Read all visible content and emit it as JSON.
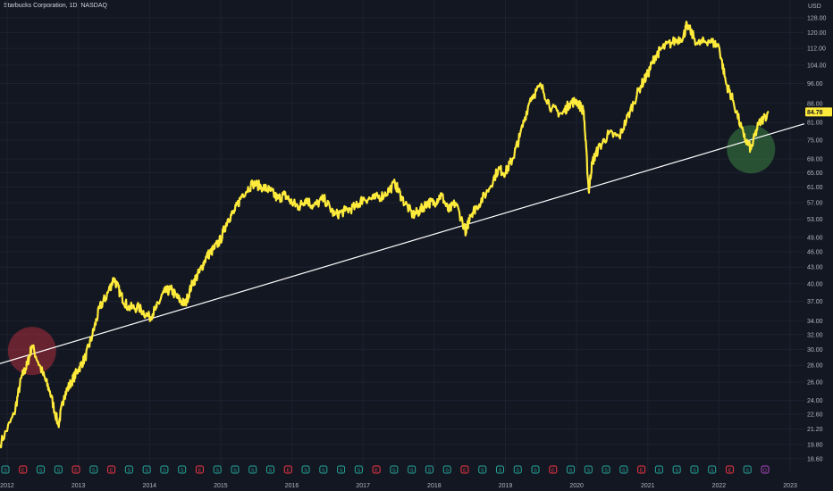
{
  "header": {
    "title": "Starbucks Corporation, 1D, NASDAQ"
  },
  "colors": {
    "background": "#131722",
    "price_line": "#ffeb3b",
    "trend_line": "#ffffff",
    "grid": "#1e2230",
    "axis_text": "#b2b5be",
    "highlight_red": "#f23645",
    "highlight_green": "#4caf50",
    "event_marker": "#26a69a"
  },
  "chart_data": {
    "type": "line",
    "title": "Starbucks Corporation, 1D, NASDAQ",
    "y_unit_label": "USD",
    "y_scale": "log",
    "ylim": [
      17.6,
      132
    ],
    "xlim": [
      2011.9,
      2023.2
    ],
    "y_ticks": [
      "128.00",
      "120.00",
      "112.00",
      "104.00",
      "96.00",
      "88.00",
      "81.00",
      "75.00",
      "69.00",
      "65.00",
      "61.00",
      "57.00",
      "53.00",
      "49.00",
      "46.00",
      "43.00",
      "40.00",
      "37.00",
      "34.00",
      "32.00",
      "30.00",
      "28.00",
      "26.00",
      "24.00",
      "22.60",
      "21.20",
      "19.80",
      "18.60"
    ],
    "x_ticks": [
      "2012",
      "2013",
      "2014",
      "2015",
      "2016",
      "2017",
      "2018",
      "2019",
      "2020",
      "2021",
      "2022",
      "2023"
    ],
    "current_price": "84.78",
    "series": [
      {
        "x": [
          2011.9,
          2012.1,
          2012.2,
          2012.28,
          2012.35,
          2012.5,
          2012.6,
          2012.72,
          2012.8,
          2012.9,
          2013.0,
          2013.1,
          2013.2,
          2013.3,
          2013.4,
          2013.5,
          2013.6,
          2013.7,
          2013.85,
          2014.0,
          2014.1,
          2014.2,
          2014.3,
          2014.4,
          2014.5,
          2014.6,
          2014.7,
          2014.8,
          2014.9,
          2015.0,
          2015.1,
          2015.2,
          2015.3,
          2015.45,
          2015.6,
          2015.7,
          2015.8,
          2015.9,
          2016.0,
          2016.1,
          2016.2,
          2016.3,
          2016.45,
          2016.6,
          2016.75,
          2016.9,
          2017.0,
          2017.15,
          2017.3,
          2017.45,
          2017.55,
          2017.7,
          2017.8,
          2017.9,
          2018.0,
          2018.1,
          2018.2,
          2018.3,
          2018.45,
          2018.5,
          2018.6,
          2018.75,
          2018.9,
          2019.0,
          2019.1,
          2019.2,
          2019.35,
          2019.5,
          2019.65,
          2019.8,
          2019.9,
          2020.0,
          2020.1,
          2020.17,
          2020.22,
          2020.3,
          2020.45,
          2020.6,
          2020.75,
          2020.9,
          2021.0,
          2021.1,
          2021.2,
          2021.35,
          2021.5,
          2021.55,
          2021.7,
          2021.85,
          2022.0,
          2022.1,
          2022.2,
          2022.35,
          2022.45,
          2022.55,
          2022.7
        ],
        "y": [
          19.8,
          22.6,
          26.5,
          28.0,
          30.5,
          27.0,
          25.0,
          21.5,
          24.5,
          26.0,
          27.5,
          29.0,
          32.0,
          36.0,
          38.0,
          41.0,
          38.0,
          36.0,
          36.0,
          34.5,
          36.0,
          38.5,
          39.0,
          37.5,
          36.5,
          40.0,
          42.0,
          45.0,
          46.5,
          48.5,
          53.0,
          55.0,
          59.0,
          62.0,
          61.0,
          60.0,
          58.0,
          59.0,
          57.0,
          56.0,
          58.0,
          56.0,
          58.0,
          54.0,
          55.0,
          56.0,
          58.0,
          58.0,
          59.0,
          62.0,
          58.0,
          54.0,
          55.0,
          57.0,
          57.0,
          59.0,
          55.0,
          57.0,
          50.0,
          54.0,
          56.0,
          60.0,
          66.0,
          65.0,
          69.0,
          76.0,
          90.0,
          95.0,
          86.0,
          84.0,
          88.0,
          89.0,
          85.0,
          60.0,
          68.0,
          72.0,
          77.0,
          76.0,
          85.0,
          95.0,
          100.0,
          108.0,
          112.0,
          115.0,
          118.0,
          124.0,
          114.0,
          116.0,
          113.0,
          96.0,
          89.0,
          76.0,
          72.0,
          80.0,
          84.78
        ]
      }
    ],
    "trend_line": {
      "x": [
        2011.9,
        2023.2
      ],
      "y": [
        28.2,
        80.5
      ]
    },
    "highlights": [
      {
        "x": 2012.35,
        "y": 29.8,
        "color": "red"
      },
      {
        "x": 2022.45,
        "y": 72.0,
        "color": "green"
      }
    ],
    "event_markers": [
      "S",
      "E",
      "S",
      "S",
      "E",
      "S",
      "E",
      "S",
      "S",
      "S",
      "S",
      "E",
      "S",
      "S",
      "S",
      "S",
      "E",
      "S",
      "S",
      "S",
      "S",
      "E",
      "S",
      "S",
      "S",
      "S",
      "E",
      "S",
      "S",
      "S",
      "S",
      "E",
      "S",
      "S",
      "S",
      "S",
      "E",
      "S",
      "S",
      "S",
      "S",
      "E",
      "S",
      "D"
    ]
  }
}
